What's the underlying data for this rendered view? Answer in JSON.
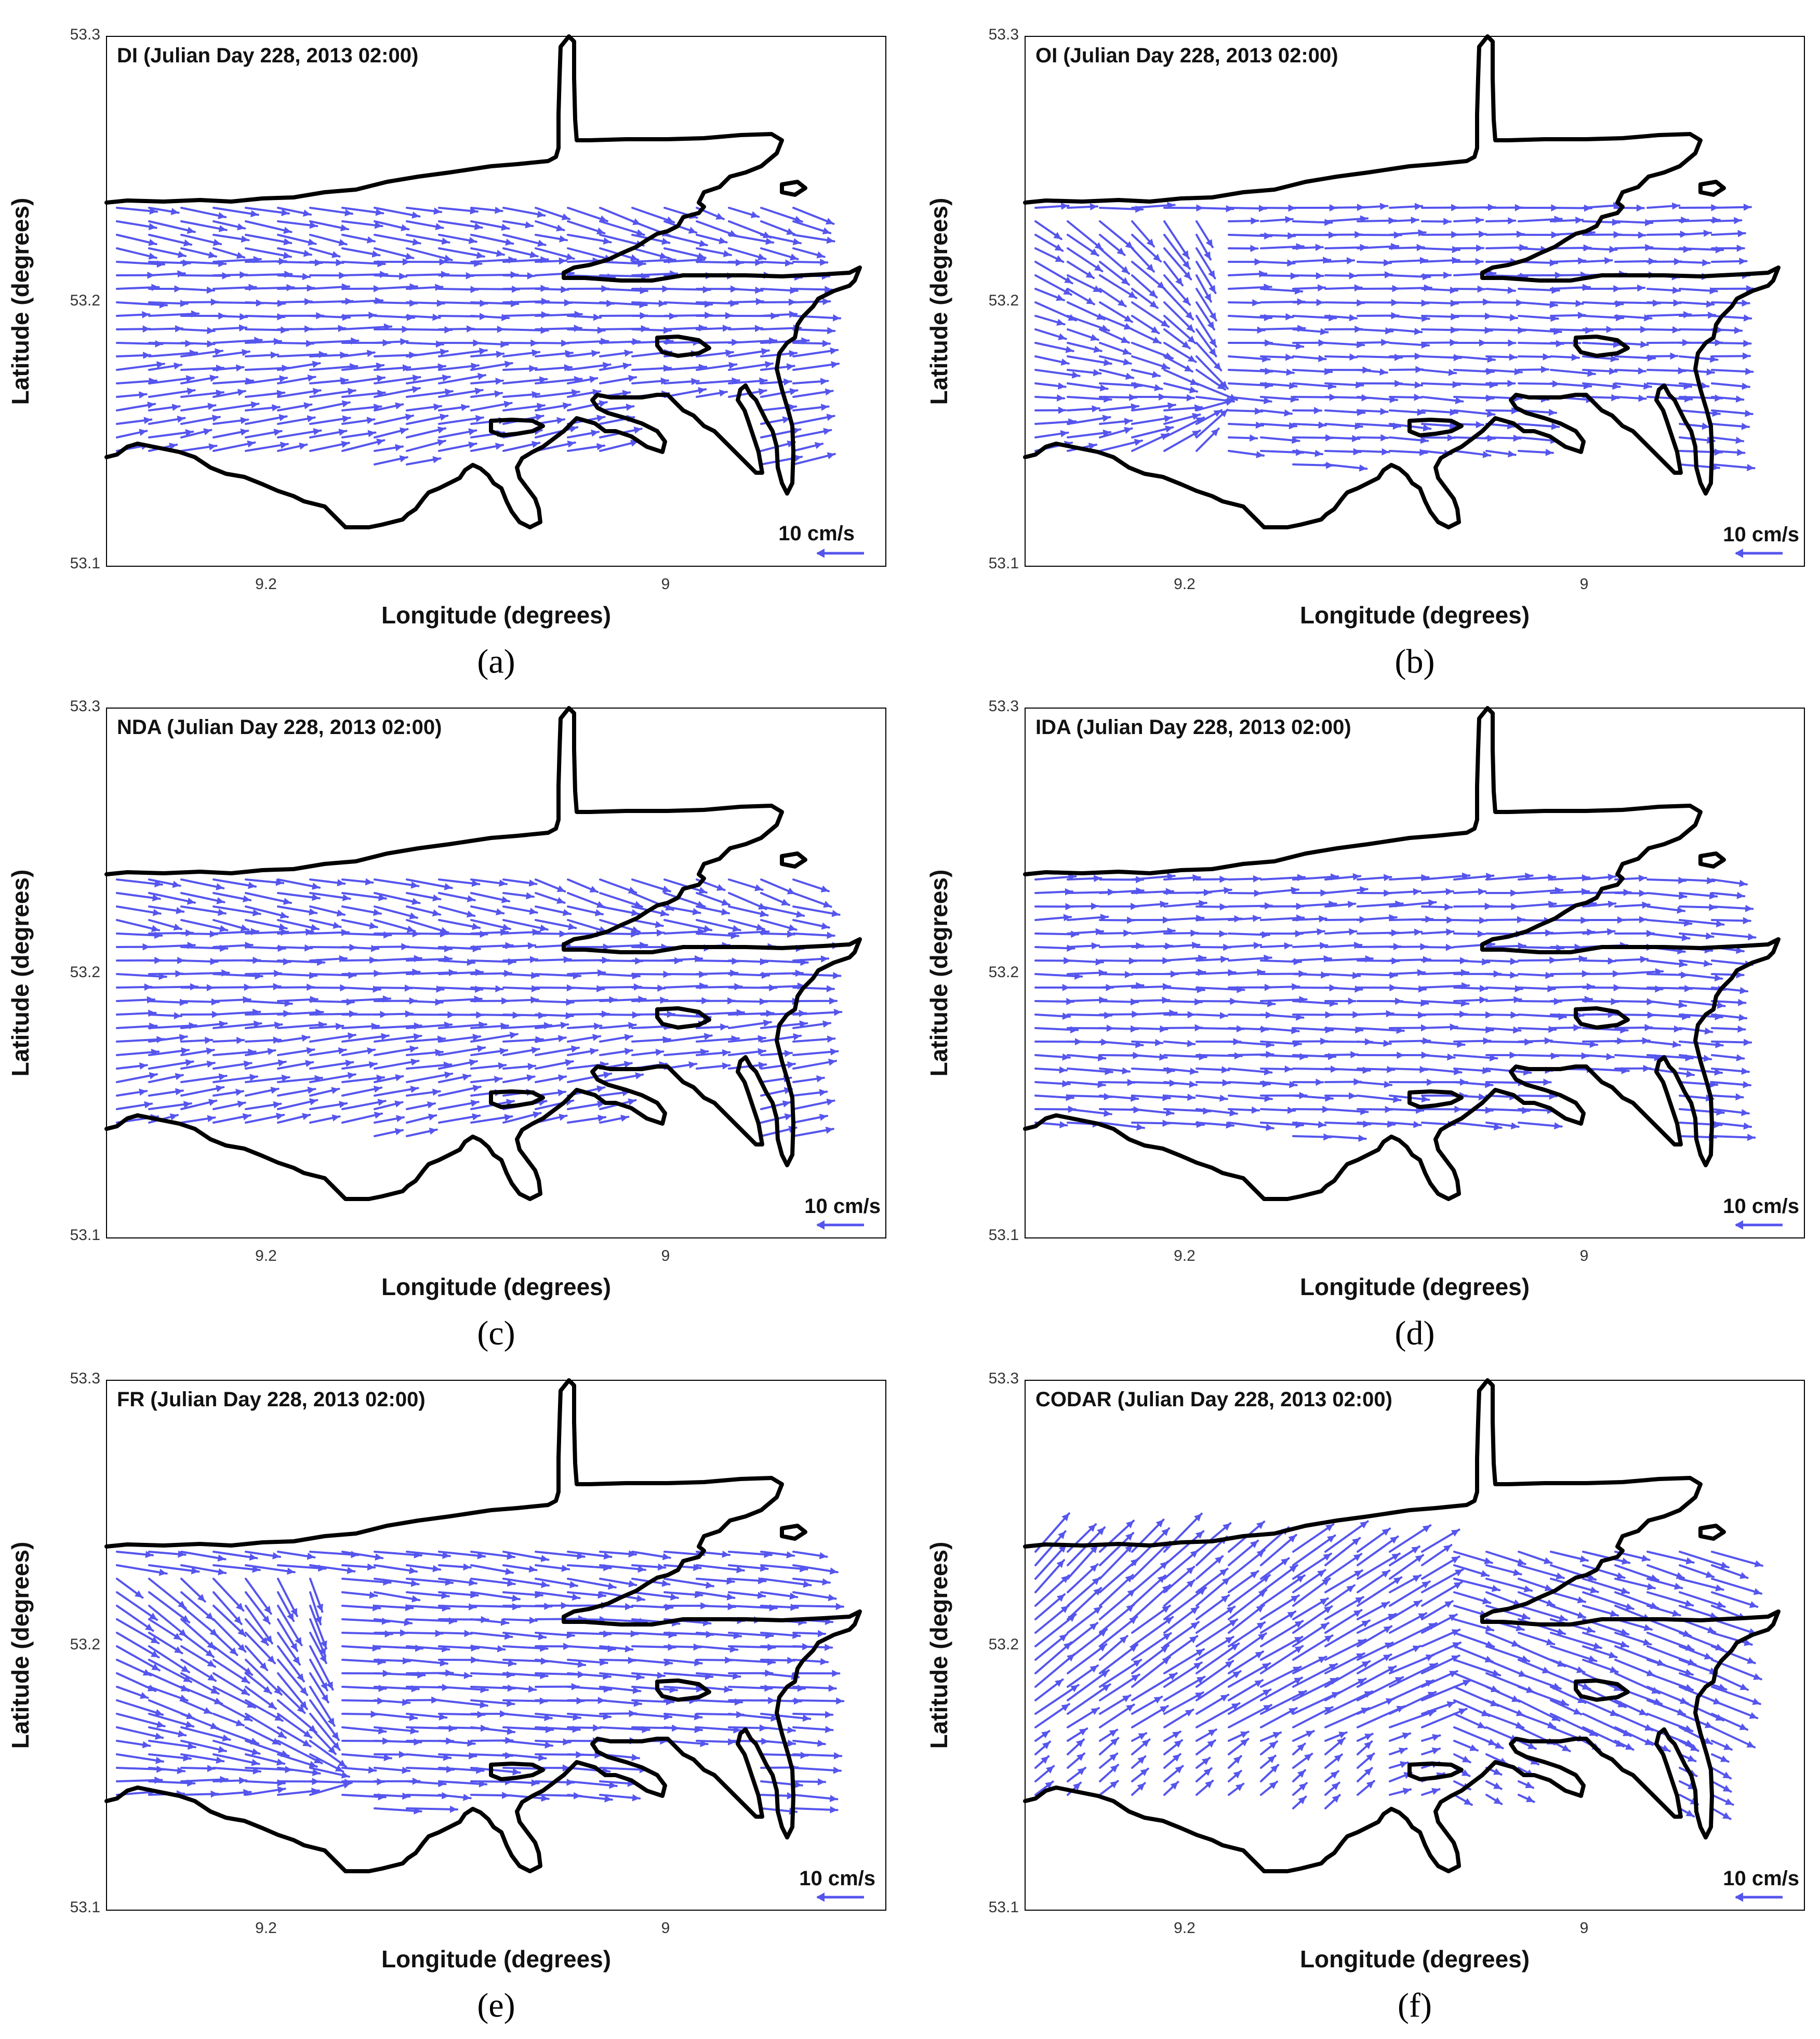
{
  "colors": {
    "vector": "#5555ee",
    "coastline": "#000000",
    "frame": "#000000"
  },
  "chart_data": [
    {
      "type": "vector-field",
      "panel_label": "(a)",
      "title": "DI (Julian Day 228, 2013 02:00)",
      "xlabel": "Longitude (degrees)",
      "ylabel": "Latitude (degrees)",
      "x_ticks": [
        "9.2",
        "9"
      ],
      "y_ticks": [
        "53.3",
        "53.2",
        "53.1"
      ],
      "xlim": [
        9.28,
        8.88
      ],
      "ylim": [
        53.1,
        53.3
      ],
      "scale_label": "10 cm/s",
      "flow_pattern": "eastward_convergent"
    },
    {
      "type": "vector-field",
      "panel_label": "(b)",
      "title": "OI (Julian Day 228, 2013 02:00)",
      "xlabel": "Longitude (degrees)",
      "ylabel": "Latitude (degrees)",
      "x_ticks": [
        "9.2",
        "9"
      ],
      "y_ticks": [
        "53.3",
        "53.2",
        "53.1"
      ],
      "xlim": [
        9.28,
        8.88
      ],
      "ylim": [
        53.1,
        53.3
      ],
      "scale_label": "10 cm/s",
      "flow_pattern": "southwest_gyre"
    },
    {
      "type": "vector-field",
      "panel_label": "(c)",
      "title": "NDA (Julian Day 228, 2013 02:00)",
      "xlabel": "Longitude (degrees)",
      "ylabel": "Latitude (degrees)",
      "x_ticks": [
        "9.2",
        "9"
      ],
      "y_ticks": [
        "53.3",
        "53.2",
        "53.1"
      ],
      "xlim": [
        9.28,
        8.88
      ],
      "ylim": [
        53.1,
        53.3
      ],
      "scale_label": "10 cm/s",
      "flow_pattern": "eastward_convergent"
    },
    {
      "type": "vector-field",
      "panel_label": "(d)",
      "title": "IDA (Julian Day 228, 2013 02:00)",
      "xlabel": "Longitude (degrees)",
      "ylabel": "Latitude (degrees)",
      "x_ticks": [
        "9.2",
        "9"
      ],
      "y_ticks": [
        "53.3",
        "53.2",
        "53.1"
      ],
      "xlim": [
        9.28,
        8.88
      ],
      "ylim": [
        53.1,
        53.3
      ],
      "scale_label": "10 cm/s",
      "flow_pattern": "eastward_uniform"
    },
    {
      "type": "vector-field",
      "panel_label": "(e)",
      "title": "FR (Julian Day 228, 2013 02:00)",
      "xlabel": "Longitude (degrees)",
      "ylabel": "Latitude (degrees)",
      "x_ticks": [
        "9.2",
        "9"
      ],
      "y_ticks": [
        "53.3",
        "53.2",
        "53.1"
      ],
      "xlim": [
        9.28,
        8.88
      ],
      "ylim": [
        53.1,
        53.3
      ],
      "scale_label": "10 cm/s",
      "flow_pattern": "southwest_gyre_strong"
    },
    {
      "type": "vector-field",
      "panel_label": "(f)",
      "title": "CODAR (Julian Day 228, 2013 02:00)",
      "xlabel": "Longitude (degrees)",
      "ylabel": "Latitude (degrees)",
      "x_ticks": [
        "9.2",
        "9"
      ],
      "y_ticks": [
        "53.3",
        "53.2",
        "53.1"
      ],
      "xlim": [
        9.28,
        8.88
      ],
      "ylim": [
        53.1,
        53.3
      ],
      "scale_label": "10 cm/s",
      "flow_pattern": "northeast_fan"
    }
  ]
}
